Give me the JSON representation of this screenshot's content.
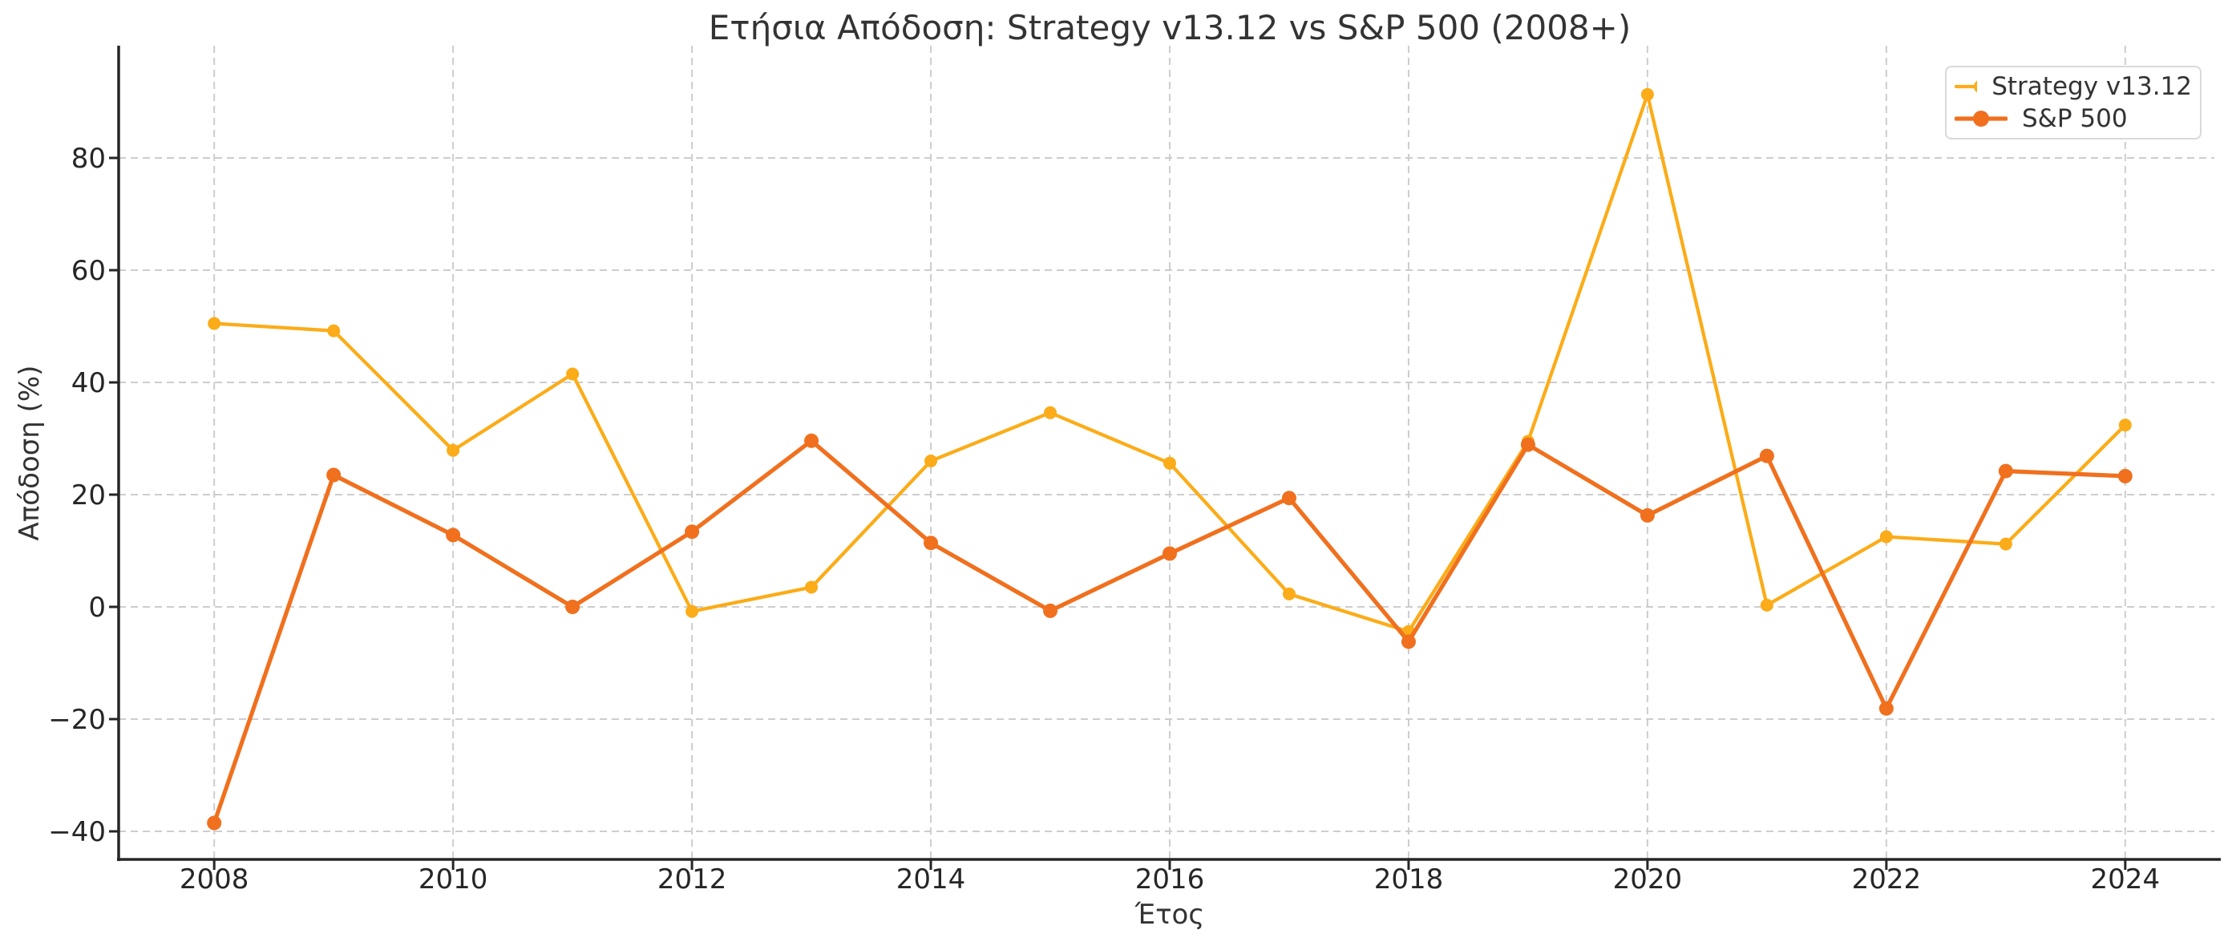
{
  "figure": {
    "title": "Ετήσια Απόδοση: Strategy v13.12 vs S&P 500 (2008+)",
    "xlabel": "Έτος",
    "ylabel": "Απόδοση (%)"
  },
  "chart_data": {
    "type": "line",
    "title": "Ετήσια Απόδοση: Strategy v13.12 vs S&P 500 (2008+)",
    "xlabel": "Έτος",
    "ylabel": "Απόδοση (%)",
    "x": [
      2008,
      2009,
      2010,
      2011,
      2012,
      2013,
      2014,
      2015,
      2016,
      2017,
      2018,
      2019,
      2020,
      2021,
      2022,
      2023,
      2024
    ],
    "series": [
      {
        "name": "Strategy v13.12",
        "color": "#FBAC18",
        "line_width": 4.3,
        "marker": "circle",
        "marker_radius": 8,
        "values": [
          50.5,
          49.2,
          27.9,
          41.5,
          -0.8,
          3.5,
          26.0,
          34.6,
          25.6,
          2.3,
          -4.4,
          29.5,
          91.3,
          0.3,
          12.5,
          11.2,
          32.4
        ]
      },
      {
        "name": "S&P 500",
        "color": "#F0701E",
        "line_width": 5.2,
        "marker": "circle",
        "marker_radius": 9,
        "values": [
          -38.5,
          23.5,
          12.8,
          0.0,
          13.4,
          29.6,
          11.4,
          -0.7,
          9.5,
          19.4,
          -6.2,
          28.9,
          16.3,
          26.9,
          -18.1,
          24.2,
          23.3
        ]
      }
    ],
    "xticks": [
      2008,
      2010,
      2012,
      2014,
      2016,
      2018,
      2020,
      2022,
      2024
    ],
    "xtick_labels": [
      "2008",
      "2010",
      "2012",
      "2014",
      "2016",
      "2018",
      "2020",
      "2022",
      "2024"
    ],
    "yticks": [
      -40,
      -20,
      0,
      20,
      40,
      60,
      80
    ],
    "ytick_labels": [
      "−40",
      "−20",
      "0",
      "20",
      "40",
      "60",
      "80"
    ],
    "xlim": [
      2007.2,
      2024.8
    ],
    "ylim": [
      -45,
      100
    ],
    "grid": {
      "visible": true,
      "style": "dashed",
      "color": "#CDCDCD"
    },
    "legend": {
      "position": "upper right",
      "labels": [
        "Strategy v13.12",
        "S&P 500"
      ]
    },
    "background": "#FFFFFF",
    "spine_color": "#262626",
    "text_color": "#333333"
  }
}
